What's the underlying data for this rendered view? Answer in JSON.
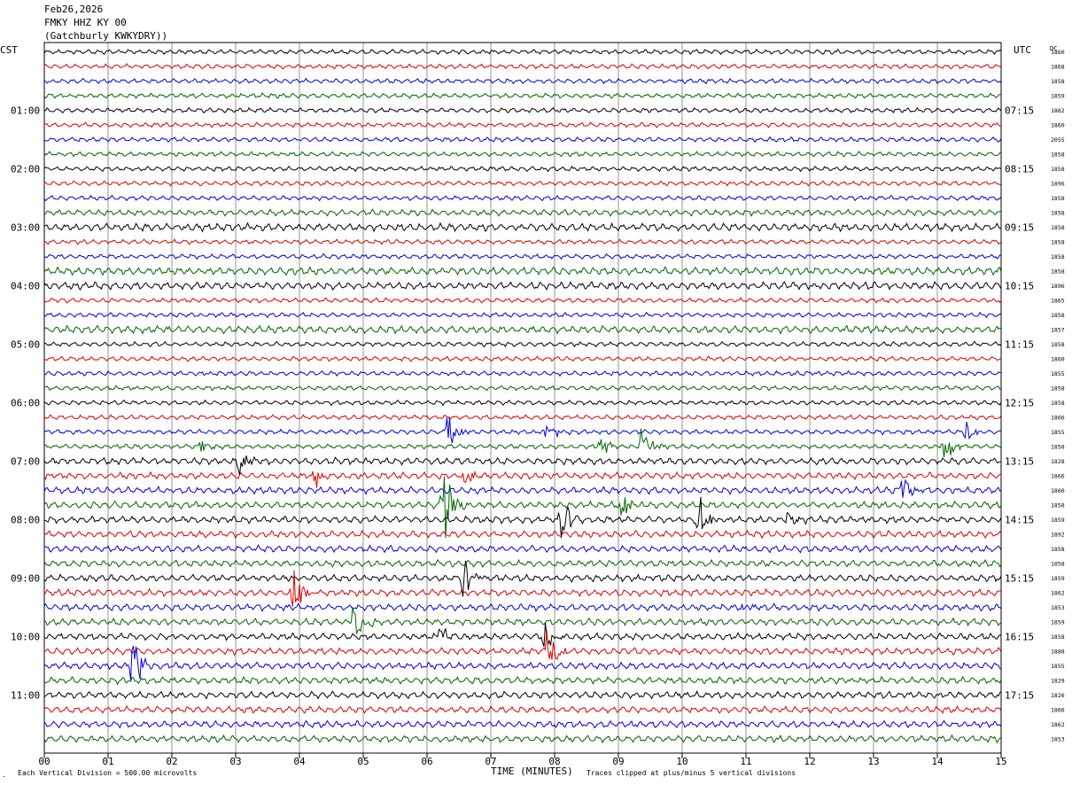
{
  "header": {
    "date": "Feb26,2026",
    "station": "FMKY HHZ KY 00",
    "location": "(Gatchburly KWKYDRY))"
  },
  "left_tz": "CST",
  "right_tz": "UTC",
  "right_corner_label": "DC",
  "footer": {
    "scale": "Each Vertical Division = 500.00 microvolts",
    "xlabel": "TIME (MINUTES)",
    "clip_note": "Traces clipped at plus/minus 5 vertical divisions",
    "corner_mark": "."
  },
  "colors": {
    "black": "#000000",
    "red": "#e00000",
    "blue": "#0000e0",
    "green": "#006400",
    "grid": "#000000"
  },
  "chart_data": {
    "type": "line",
    "title": "Feb26,2026 FMKY HHZ KY 00",
    "xlabel": "TIME (MINUTES)",
    "xlim": [
      0,
      15
    ],
    "x_ticks": [
      "00",
      "01",
      "02",
      "03",
      "04",
      "05",
      "06",
      "07",
      "08",
      "09",
      "10",
      "11",
      "12",
      "13",
      "14",
      "15"
    ],
    "trace_count": 48,
    "minutes_per_trace": 15,
    "color_cycle": [
      "black",
      "red",
      "blue",
      "green"
    ],
    "left_hour_labels": [
      "01:00",
      "02:00",
      "03:00",
      "04:00",
      "05:00",
      "06:00",
      "07:00",
      "08:00",
      "09:00",
      "10:00",
      "11:00"
    ],
    "right_hour_labels": [
      "07:15",
      "08:15",
      "09:15",
      "10:15",
      "11:15",
      "12:15",
      "13:15",
      "14:15",
      "15:15",
      "16:15",
      "17:15"
    ],
    "dc_offsets": [
      "1860",
      "1868",
      "1858",
      "1859",
      "1862",
      "1860",
      "2055",
      "1858",
      "1858",
      "1896",
      "1858",
      "1858",
      "1858",
      "1858",
      "1858",
      "1858",
      "1896",
      "1865",
      "1858",
      "1857",
      "1858",
      "1860",
      "1855",
      "1858",
      "1858",
      "1866",
      "1855",
      "1858",
      "1828",
      "1866",
      "1860",
      "1858",
      "1859",
      "1892",
      "1858",
      "1858",
      "1859",
      "1862",
      "1853",
      "1859",
      "1858",
      "1888",
      "1855",
      "1829",
      "1826",
      "1866",
      "1862",
      "1853"
    ],
    "events": [
      {
        "trace": 26,
        "minute": 6.33,
        "amp": 2.2
      },
      {
        "trace": 26,
        "minute": 7.88,
        "amp": 1.6
      },
      {
        "trace": 26,
        "minute": 14.45,
        "amp": 1.3
      },
      {
        "trace": 27,
        "minute": 2.45,
        "amp": 0.8
      },
      {
        "trace": 27,
        "minute": 8.7,
        "amp": 1.6
      },
      {
        "trace": 27,
        "minute": 9.36,
        "amp": 2
      },
      {
        "trace": 27,
        "minute": 14.1,
        "amp": 2.2
      },
      {
        "trace": 28,
        "minute": 3.05,
        "amp": 1.6
      },
      {
        "trace": 29,
        "minute": 4.25,
        "amp": 1.3
      },
      {
        "trace": 29,
        "minute": 6.6,
        "amp": 1.2
      },
      {
        "trace": 30,
        "minute": 13.45,
        "amp": 1.6
      },
      {
        "trace": 31,
        "minute": 6.25,
        "amp": 4.5
      },
      {
        "trace": 31,
        "minute": 9.05,
        "amp": 2
      },
      {
        "trace": 32,
        "minute": 8.1,
        "amp": 2.5
      },
      {
        "trace": 32,
        "minute": 10.25,
        "amp": 3
      },
      {
        "trace": 32,
        "minute": 11.65,
        "amp": 0.8
      },
      {
        "trace": 36,
        "minute": 6.57,
        "amp": 2.2
      },
      {
        "trace": 37,
        "minute": 3.9,
        "amp": 3
      },
      {
        "trace": 38,
        "minute": 10.95,
        "amp": 0.9
      },
      {
        "trace": 39,
        "minute": 4.85,
        "amp": 2.8
      },
      {
        "trace": 40,
        "minute": 6.2,
        "amp": 1.2
      },
      {
        "trace": 40,
        "minute": 7.85,
        "amp": 1.5
      },
      {
        "trace": 41,
        "minute": 7.88,
        "amp": 3.6
      },
      {
        "trace": 42,
        "minute": 1.38,
        "amp": 3
      }
    ]
  }
}
